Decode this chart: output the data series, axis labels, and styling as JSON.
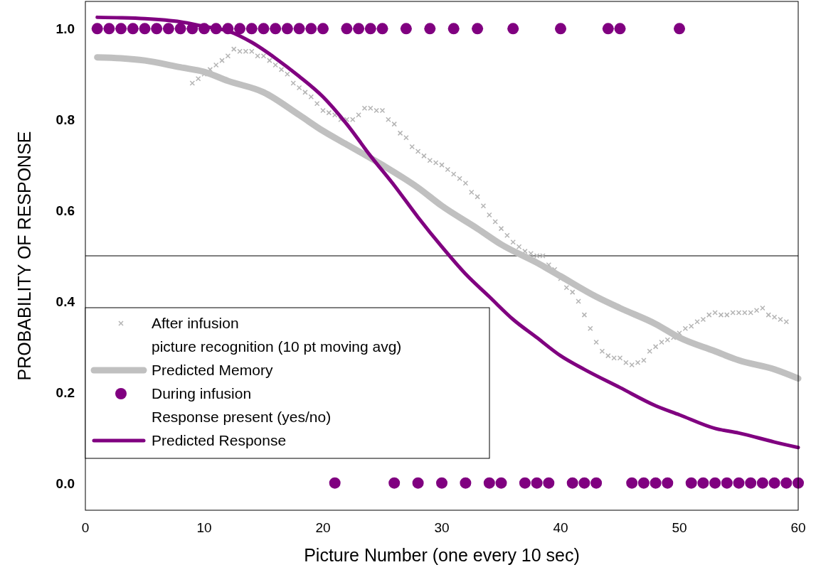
{
  "chart_data": {
    "type": "scatter",
    "xlabel": "Picture Number (one every 10 sec)",
    "ylabel": "PROBABILITY OF RESPONSE",
    "xlim": [
      0,
      60
    ],
    "ylim": [
      -0.06,
      1.06
    ],
    "xticks": [
      0,
      10,
      20,
      30,
      40,
      50,
      60
    ],
    "yticks": [
      {
        "value": 0,
        "label": "0.0"
      },
      {
        "value": 0.2,
        "label": "0.2"
      },
      {
        "value": 0.4,
        "label": "0.4"
      },
      {
        "value": 0.6,
        "label": "0.6"
      },
      {
        "value": 0.8,
        "label": "0.8"
      },
      {
        "value": 1,
        "label": "1.0"
      }
    ],
    "grid": false,
    "legend": "bottom left",
    "ref_lines": [
      {
        "axis": "y",
        "value": 0.5,
        "color": "#000000"
      }
    ],
    "series": [
      {
        "name": "After infusion\npicture recognition (10 pt moving avg)",
        "marker": "cross",
        "color": "#b4b4b4",
        "x": [
          9,
          9.5,
          10,
          10.5,
          11,
          11.5,
          12,
          12.5,
          13,
          13.5,
          14,
          14.5,
          15,
          15.5,
          16,
          16.5,
          17,
          17.5,
          18,
          18.5,
          19,
          19.5,
          20,
          20.5,
          21,
          21.5,
          22,
          22.5,
          23,
          23.5,
          24,
          24.5,
          25,
          25.5,
          26,
          26.5,
          27,
          27.5,
          28,
          28.5,
          29,
          29.5,
          30,
          30.5,
          31,
          31.5,
          32,
          32.5,
          33,
          33.5,
          34,
          34.5,
          35,
          35.5,
          36,
          36.5,
          37,
          37.5,
          38,
          38.5,
          39,
          39.5,
          40,
          40.5,
          41,
          41.5,
          42,
          42.5,
          43,
          43.5,
          44,
          44.5,
          45,
          45.5,
          46,
          46.5,
          47,
          47.5,
          48,
          48.5,
          49,
          49.5,
          50,
          50.5,
          51,
          51.5,
          52,
          52.5,
          53,
          53.5,
          54,
          54.5,
          55,
          55.5,
          56,
          56.5,
          57,
          57.5,
          58,
          58.5,
          59
        ],
        "values": [
          0.88,
          0.89,
          0.9,
          0.91,
          0.92,
          0.93,
          0.94,
          0.955,
          0.95,
          0.95,
          0.95,
          0.94,
          0.94,
          0.93,
          0.92,
          0.91,
          0.9,
          0.88,
          0.87,
          0.86,
          0.85,
          0.835,
          0.82,
          0.815,
          0.81,
          0.8,
          0.8,
          0.8,
          0.81,
          0.825,
          0.825,
          0.82,
          0.82,
          0.8,
          0.79,
          0.77,
          0.76,
          0.74,
          0.73,
          0.72,
          0.71,
          0.705,
          0.7,
          0.69,
          0.68,
          0.67,
          0.66,
          0.64,
          0.63,
          0.61,
          0.59,
          0.575,
          0.56,
          0.545,
          0.53,
          0.52,
          0.51,
          0.505,
          0.5,
          0.5,
          0.48,
          0.47,
          0.45,
          0.43,
          0.42,
          0.4,
          0.37,
          0.34,
          0.31,
          0.29,
          0.28,
          0.275,
          0.275,
          0.265,
          0.26,
          0.265,
          0.27,
          0.29,
          0.3,
          0.31,
          0.315,
          0.32,
          0.33,
          0.34,
          0.345,
          0.355,
          0.36,
          0.37,
          0.375,
          0.37,
          0.37,
          0.375,
          0.375,
          0.375,
          0.375,
          0.38,
          0.385,
          0.37,
          0.365,
          0.36,
          0.355
        ]
      },
      {
        "name": "Predicted Memory",
        "type": "line",
        "color": "#c0c0c0",
        "x": [
          1,
          3,
          5,
          8,
          10,
          12,
          15,
          18,
          20,
          22,
          25,
          28,
          30,
          33,
          35,
          38,
          40,
          43,
          45,
          48,
          50,
          53,
          55,
          58,
          60
        ],
        "values": [
          0.937,
          0.935,
          0.93,
          0.915,
          0.905,
          0.885,
          0.86,
          0.81,
          0.775,
          0.745,
          0.7,
          0.65,
          0.61,
          0.56,
          0.525,
          0.485,
          0.455,
          0.41,
          0.385,
          0.35,
          0.32,
          0.29,
          0.27,
          0.25,
          0.23
        ]
      },
      {
        "name": "During infusion\nResponse present (yes/no)",
        "marker": "circle",
        "color": "#800080",
        "x": [
          1,
          2,
          3,
          4,
          5,
          6,
          7,
          8,
          9,
          10,
          11,
          12,
          13,
          14,
          15,
          16,
          17,
          18,
          19,
          20,
          21,
          22,
          23,
          24,
          25,
          26,
          27,
          28,
          29,
          30,
          31,
          32,
          33,
          34,
          35,
          36,
          37,
          38,
          39,
          40,
          41,
          42,
          43,
          44,
          45,
          46,
          47,
          48,
          49,
          50,
          51,
          52,
          53,
          54,
          55,
          56,
          57,
          58,
          59,
          60
        ],
        "values": [
          1,
          1,
          1,
          1,
          1,
          1,
          1,
          1,
          1,
          1,
          1,
          1,
          1,
          1,
          1,
          1,
          1,
          1,
          1,
          1,
          0,
          1,
          1,
          1,
          1,
          0,
          1,
          0,
          1,
          0,
          1,
          0,
          1,
          0,
          0,
          1,
          0,
          0,
          0,
          1,
          0,
          0,
          0,
          1,
          1,
          0,
          0,
          0,
          0,
          1,
          0,
          0,
          0,
          0,
          0,
          0,
          0,
          0,
          0,
          0
        ]
      },
      {
        "name": "Predicted Response",
        "type": "line",
        "color": "#800080",
        "x": [
          1,
          3,
          5,
          8,
          10,
          12,
          14,
          16,
          18,
          20,
          22,
          24,
          26,
          28,
          30,
          32,
          34,
          36,
          38,
          40,
          42,
          45,
          48,
          50,
          53,
          55,
          58,
          60
        ],
        "values": [
          1.025,
          1.024,
          1.022,
          1.015,
          1.005,
          0.995,
          0.97,
          0.935,
          0.895,
          0.85,
          0.79,
          0.72,
          0.655,
          0.585,
          0.52,
          0.46,
          0.41,
          0.36,
          0.32,
          0.28,
          0.25,
          0.21,
          0.17,
          0.15,
          0.12,
          0.11,
          0.09,
          0.078
        ]
      }
    ]
  }
}
